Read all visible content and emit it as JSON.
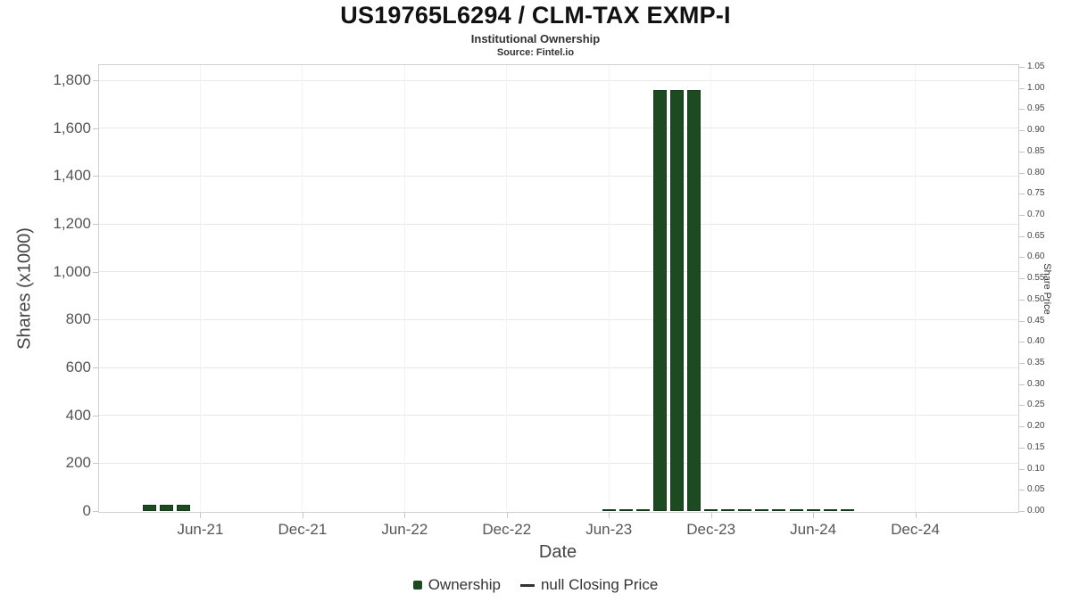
{
  "header": {
    "title": "US19765L6294 / CLM-TAX EXMP-I",
    "subtitle": "Institutional Ownership",
    "source": "Source: Fintel.io"
  },
  "chart_data": {
    "type": "bar",
    "title": "US19765L6294 / CLM-TAX EXMP-I",
    "subtitle": "Institutional Ownership",
    "source": "Source: Fintel.io",
    "grid": "on",
    "legend_position": "bottom-center",
    "x_axis": {
      "label": "Date",
      "domain_start": "Dec-20",
      "domain_end": "Jun-25",
      "total_months": 54,
      "tick_labels": [
        "Jun-21",
        "Dec-21",
        "Jun-22",
        "Dec-22",
        "Jun-23",
        "Dec-23",
        "Jun-24",
        "Dec-24"
      ],
      "tick_month_offsets": [
        6,
        12,
        18,
        24,
        30,
        36,
        42,
        48
      ]
    },
    "y_axis_left": {
      "label": "Shares (x1000)",
      "min": 0,
      "max": 1800,
      "tick_step": 200,
      "tick_labels": [
        "0",
        "200",
        "400",
        "600",
        "800",
        "1,000",
        "1,200",
        "1,400",
        "1,600",
        "1,800"
      ]
    },
    "y_axis_right": {
      "label": "Share Price",
      "min": 0,
      "max": 1.05,
      "tick_step": 0.05,
      "tick_labels": [
        "0.00",
        "0.05",
        "0.10",
        "0.15",
        "0.20",
        "0.25",
        "0.30",
        "0.35",
        "0.40",
        "0.45",
        "0.50",
        "0.55",
        "0.60",
        "0.65",
        "0.70",
        "0.75",
        "0.80",
        "0.85",
        "0.90",
        "0.95",
        "1.00",
        "1.05"
      ]
    },
    "series": [
      {
        "name": "Ownership",
        "type": "bar",
        "units": "shares (x1000)",
        "color": "#1e4a22",
        "border_color": "#16381a",
        "points": [
          {
            "month": "Mar-21",
            "month_offset": 3,
            "value": 25
          },
          {
            "month": "Apr-21",
            "month_offset": 4,
            "value": 25
          },
          {
            "month": "May-21",
            "month_offset": 5,
            "value": 25
          },
          {
            "month": "Jun-23",
            "month_offset": 30,
            "value": 8
          },
          {
            "month": "Jul-23",
            "month_offset": 31,
            "value": 8
          },
          {
            "month": "Aug-23",
            "month_offset": 32,
            "value": 8
          },
          {
            "month": "Sep-23",
            "month_offset": 33,
            "value": 1760
          },
          {
            "month": "Oct-23",
            "month_offset": 34,
            "value": 1760
          },
          {
            "month": "Nov-23",
            "month_offset": 35,
            "value": 1760
          },
          {
            "month": "Dec-23",
            "month_offset": 36,
            "value": 8
          },
          {
            "month": "Jan-24",
            "month_offset": 37,
            "value": 8
          },
          {
            "month": "Feb-24",
            "month_offset": 38,
            "value": 8
          },
          {
            "month": "Mar-24",
            "month_offset": 39,
            "value": 8
          },
          {
            "month": "Apr-24",
            "month_offset": 40,
            "value": 8
          },
          {
            "month": "May-24",
            "month_offset": 41,
            "value": 8
          },
          {
            "month": "Jun-24",
            "month_offset": 42,
            "value": 8
          },
          {
            "month": "Jul-24",
            "month_offset": 43,
            "value": 8
          },
          {
            "month": "Aug-24",
            "month_offset": 44,
            "value": 8
          }
        ]
      },
      {
        "name": "null Closing Price",
        "type": "line",
        "color": "#333333",
        "points": []
      }
    ]
  }
}
